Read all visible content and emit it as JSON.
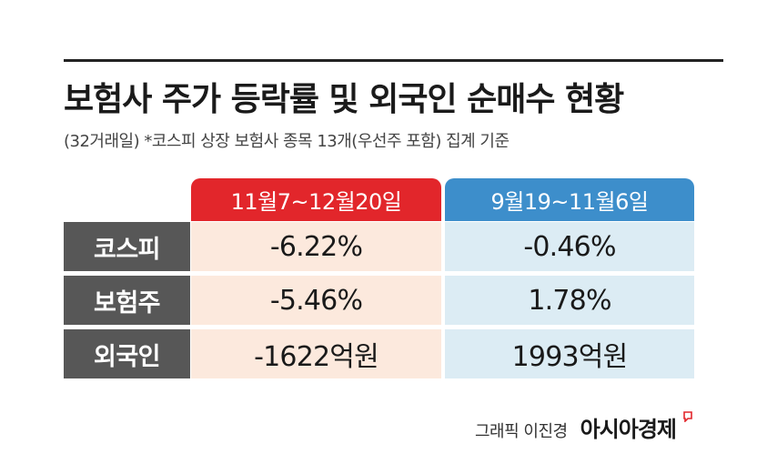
{
  "title": "보험사 주가 등락률 및 외국인 순매수 현황",
  "subtitle": "(32거래일) *코스피 상장 보험사 종목 13개(우선주 포함) 집계 기준",
  "chart_data": {
    "type": "table",
    "columns": [
      "11월7~12월20일",
      "9월19~11월6일"
    ],
    "rows": [
      {
        "label": "코스피",
        "values": [
          "-6.22%",
          "-0.46%"
        ]
      },
      {
        "label": "보험주",
        "values": [
          "-5.46%",
          "1.78%"
        ]
      },
      {
        "label": "외국인",
        "values": [
          "-1622억원",
          "1993억원"
        ]
      }
    ],
    "numeric": {
      "코스피": {
        "11월7~12월20일": -6.22,
        "9월19~11월6일": -0.46,
        "unit": "%"
      },
      "보험주": {
        "11월7~12월20일": -5.46,
        "9월19~11월6일": 1.78,
        "unit": "%"
      },
      "외국인": {
        "11월7~12월20일": -1622,
        "9월19~11월6일": 1993,
        "unit": "억원"
      }
    }
  },
  "colors": {
    "period1_header": "#e2262b",
    "period2_header": "#3d8ecb",
    "period1_cell": "#fce9dd",
    "period2_cell": "#dcecf4",
    "row_label_bg": "#575757"
  },
  "credit": {
    "author": "그래픽 이진경",
    "logo": "아시아경제"
  }
}
